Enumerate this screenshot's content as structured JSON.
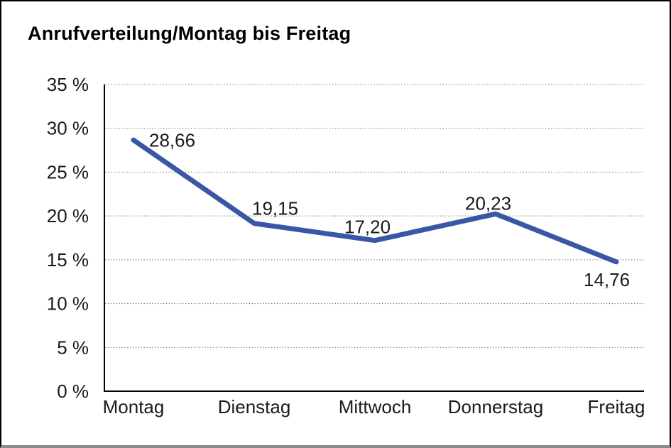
{
  "title": "Anrufverteilung/Montag bis Freitag",
  "chart_data": {
    "type": "line",
    "title": "Anrufverteilung/Montag bis Freitag",
    "categories": [
      "Montag",
      "Dienstag",
      "Mittwoch",
      "Donnerstag",
      "Freitag"
    ],
    "values": [
      28.66,
      19.15,
      17.2,
      20.23,
      14.76
    ],
    "value_labels": [
      "28,66",
      "19,15",
      "17,20",
      "20,23",
      "14,76"
    ],
    "ylim": [
      0,
      35
    ],
    "ytick_step": 5,
    "ytick_labels": [
      "0 %",
      "5 %",
      "10 %",
      "15 %",
      "20 %",
      "25 %",
      "30 %",
      "35 %"
    ],
    "xlabel": "",
    "ylabel": "",
    "grid": "horizontal-dotted",
    "legend": "none",
    "line_color": "#3A57A6",
    "axis_color": "#000000",
    "grid_color": "#666666",
    "text_color": "#1a1a1a"
  }
}
